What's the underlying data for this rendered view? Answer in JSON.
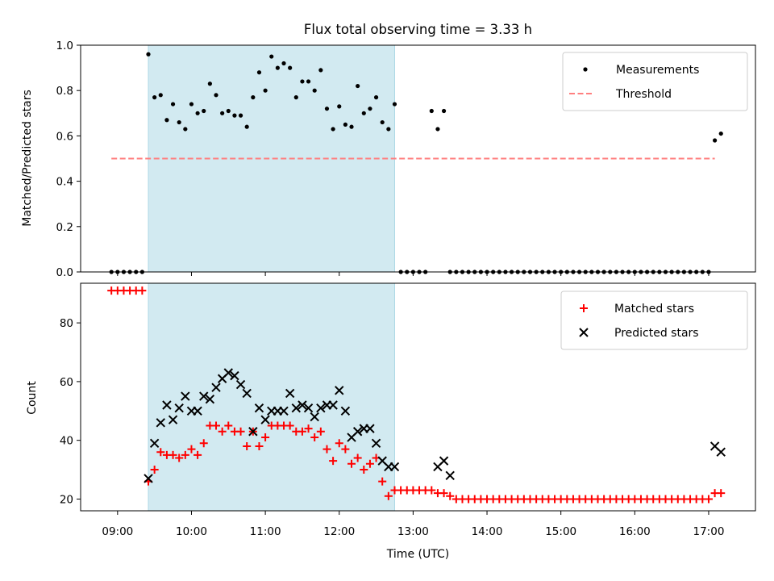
{
  "title": "Flux total observing time = 3.33 h",
  "chart_data": [
    {
      "type": "scatter",
      "panel": "top",
      "title": "Flux total observing time = 3.33 h",
      "xlabel": "",
      "ylabel": "Matched/Predicted stars",
      "xlim": [
        "08:30",
        "17:38"
      ],
      "ylim": [
        0,
        1.0
      ],
      "yticks": [
        0.0,
        0.2,
        0.4,
        0.6,
        0.8,
        1.0
      ],
      "ytick_labels": [
        "0.0",
        "0.2",
        "0.4",
        "0.6",
        "0.8",
        "1.0"
      ],
      "shaded_interval": {
        "start": "09:25",
        "end": "12:45",
        "color": "#add8e6"
      },
      "legend": {
        "placement": "top-right"
      },
      "series": [
        {
          "name": "Measurements",
          "kind": "scatter",
          "marker": "dot",
          "color": "#000000",
          "x": [
            "08:55",
            "09:00",
            "09:05",
            "09:10",
            "09:15",
            "09:20",
            "09:25",
            "09:30",
            "09:35",
            "09:40",
            "09:45",
            "09:50",
            "09:55",
            "10:00",
            "10:05",
            "10:10",
            "10:15",
            "10:20",
            "10:25",
            "10:30",
            "10:35",
            "10:40",
            "10:45",
            "10:50",
            "10:55",
            "11:00",
            "11:05",
            "11:10",
            "11:15",
            "11:20",
            "11:25",
            "11:30",
            "11:35",
            "11:40",
            "11:45",
            "11:50",
            "11:55",
            "12:00",
            "12:05",
            "12:10",
            "12:15",
            "12:20",
            "12:25",
            "12:30",
            "12:35",
            "12:40",
            "12:45",
            "12:50",
            "12:55",
            "13:00",
            "13:05",
            "13:10",
            "13:15",
            "13:20",
            "13:25",
            "13:30",
            "13:35",
            "13:40",
            "13:45",
            "13:50",
            "13:55",
            "14:00",
            "14:05",
            "14:10",
            "14:15",
            "14:20",
            "14:25",
            "14:30",
            "14:35",
            "14:40",
            "14:45",
            "14:50",
            "14:55",
            "15:00",
            "15:05",
            "15:10",
            "15:15",
            "15:20",
            "15:25",
            "15:30",
            "15:35",
            "15:40",
            "15:45",
            "15:50",
            "15:55",
            "16:00",
            "16:05",
            "16:10",
            "16:15",
            "16:20",
            "16:25",
            "16:30",
            "16:35",
            "16:40",
            "16:45",
            "16:50",
            "16:55",
            "17:00",
            "17:05",
            "17:10"
          ],
          "y": [
            0,
            0,
            0,
            0,
            0,
            0,
            0.96,
            0.77,
            0.78,
            0.67,
            0.74,
            0.66,
            0.63,
            0.74,
            0.7,
            0.71,
            0.83,
            0.78,
            0.7,
            0.71,
            0.69,
            0.69,
            0.64,
            0.77,
            0.88,
            0.8,
            0.95,
            0.9,
            0.92,
            0.9,
            0.77,
            0.84,
            0.84,
            0.8,
            0.89,
            0.72,
            0.63,
            0.73,
            0.65,
            0.64,
            0.82,
            0.7,
            0.72,
            0.77,
            0.66,
            0.63,
            0.74,
            0,
            0,
            0,
            0,
            0,
            0.71,
            0.63,
            0.71,
            0,
            0,
            0,
            0,
            0,
            0,
            0,
            0,
            0,
            0,
            0,
            0,
            0,
            0,
            0,
            0,
            0,
            0,
            0,
            0,
            0,
            0,
            0,
            0,
            0,
            0,
            0,
            0,
            0,
            0,
            0,
            0,
            0,
            0,
            0,
            0,
            0,
            0,
            0,
            0,
            0,
            0,
            0,
            0.58,
            0.61
          ]
        },
        {
          "name": "Threshold",
          "kind": "hline",
          "style": "dashed",
          "color": "#ff7f7f",
          "y": 0.5,
          "x": [
            "08:55",
            "17:05"
          ]
        }
      ]
    },
    {
      "type": "scatter",
      "panel": "bottom",
      "xlabel": "Time (UTC)",
      "ylabel": "Count",
      "xlim": [
        "08:30",
        "17:38"
      ],
      "ylim": [
        16,
        93.5
      ],
      "yticks": [
        20,
        40,
        60,
        80
      ],
      "ytick_labels": [
        "20",
        "40",
        "60",
        "80"
      ],
      "xticks": [
        "09:00",
        "10:00",
        "11:00",
        "12:00",
        "13:00",
        "14:00",
        "15:00",
        "16:00",
        "17:00"
      ],
      "xtick_labels": [
        "09:00",
        "10:00",
        "11:00",
        "12:00",
        "13:00",
        "14:00",
        "15:00",
        "16:00",
        "17:00"
      ],
      "shaded_interval": {
        "start": "09:25",
        "end": "12:45",
        "color": "#add8e6"
      },
      "legend": {
        "placement": "top-right"
      },
      "series": [
        {
          "name": "Matched stars",
          "kind": "scatter",
          "marker": "plus",
          "color": "#ff0000",
          "x": [
            "08:55",
            "09:00",
            "09:05",
            "09:10",
            "09:15",
            "09:20",
            "09:25",
            "09:30",
            "09:35",
            "09:40",
            "09:45",
            "09:50",
            "09:55",
            "10:00",
            "10:05",
            "10:10",
            "10:15",
            "10:20",
            "10:25",
            "10:30",
            "10:35",
            "10:40",
            "10:45",
            "10:50",
            "10:55",
            "11:00",
            "11:05",
            "11:10",
            "11:15",
            "11:20",
            "11:25",
            "11:30",
            "11:35",
            "11:40",
            "11:45",
            "11:50",
            "11:55",
            "12:00",
            "12:05",
            "12:10",
            "12:15",
            "12:20",
            "12:25",
            "12:30",
            "12:35",
            "12:40",
            "12:45",
            "12:50",
            "12:55",
            "13:00",
            "13:05",
            "13:10",
            "13:15",
            "13:20",
            "13:25",
            "13:30",
            "13:35",
            "13:40",
            "13:45",
            "13:50",
            "13:55",
            "14:00",
            "14:05",
            "14:10",
            "14:15",
            "14:20",
            "14:25",
            "14:30",
            "14:35",
            "14:40",
            "14:45",
            "14:50",
            "14:55",
            "15:00",
            "15:05",
            "15:10",
            "15:15",
            "15:20",
            "15:25",
            "15:30",
            "15:35",
            "15:40",
            "15:45",
            "15:50",
            "15:55",
            "16:00",
            "16:05",
            "16:10",
            "16:15",
            "16:20",
            "16:25",
            "16:30",
            "16:35",
            "16:40",
            "16:45",
            "16:50",
            "16:55",
            "17:00",
            "17:05",
            "17:10"
          ],
          "y": [
            91,
            91,
            91,
            91,
            91,
            91,
            26,
            30,
            36,
            35,
            35,
            34,
            35,
            37,
            35,
            39,
            45,
            45,
            43,
            45,
            43,
            43,
            38,
            43,
            38,
            41,
            45,
            45,
            45,
            45,
            43,
            43,
            44,
            41,
            43,
            37,
            33,
            39,
            37,
            32,
            34,
            30,
            32,
            34,
            26,
            21,
            23,
            23,
            23,
            23,
            23,
            23,
            23,
            22,
            22,
            21,
            20,
            20,
            20,
            20,
            20,
            20,
            20,
            20,
            20,
            20,
            20,
            20,
            20,
            20,
            20,
            20,
            20,
            20,
            20,
            20,
            20,
            20,
            20,
            20,
            20,
            20,
            20,
            20,
            20,
            20,
            20,
            20,
            20,
            20,
            20,
            20,
            20,
            20,
            20,
            20,
            20,
            20,
            22,
            22
          ]
        },
        {
          "name": "Predicted stars",
          "kind": "scatter",
          "marker": "x",
          "color": "#000000",
          "x": [
            "09:25",
            "09:30",
            "09:35",
            "09:40",
            "09:45",
            "09:50",
            "09:55",
            "10:00",
            "10:05",
            "10:10",
            "10:15",
            "10:20",
            "10:25",
            "10:30",
            "10:35",
            "10:40",
            "10:45",
            "10:50",
            "10:55",
            "11:00",
            "11:05",
            "11:10",
            "11:15",
            "11:20",
            "11:25",
            "11:30",
            "11:35",
            "11:40",
            "11:45",
            "11:50",
            "11:55",
            "12:00",
            "12:05",
            "12:10",
            "12:15",
            "12:20",
            "12:25",
            "12:30",
            "12:35",
            "12:40",
            "12:45",
            "13:20",
            "13:25",
            "13:30",
            "17:05",
            "17:10"
          ],
          "y": [
            27,
            39,
            46,
            52,
            47,
            51,
            55,
            50,
            50,
            55,
            54,
            58,
            61,
            63,
            62,
            59,
            56,
            43,
            51,
            47,
            50,
            50,
            50,
            56,
            51,
            52,
            51,
            48,
            51,
            52,
            52,
            57,
            50,
            41,
            43,
            44,
            44,
            39,
            33,
            31,
            31,
            31,
            33,
            28,
            38,
            36
          ]
        }
      ]
    }
  ]
}
